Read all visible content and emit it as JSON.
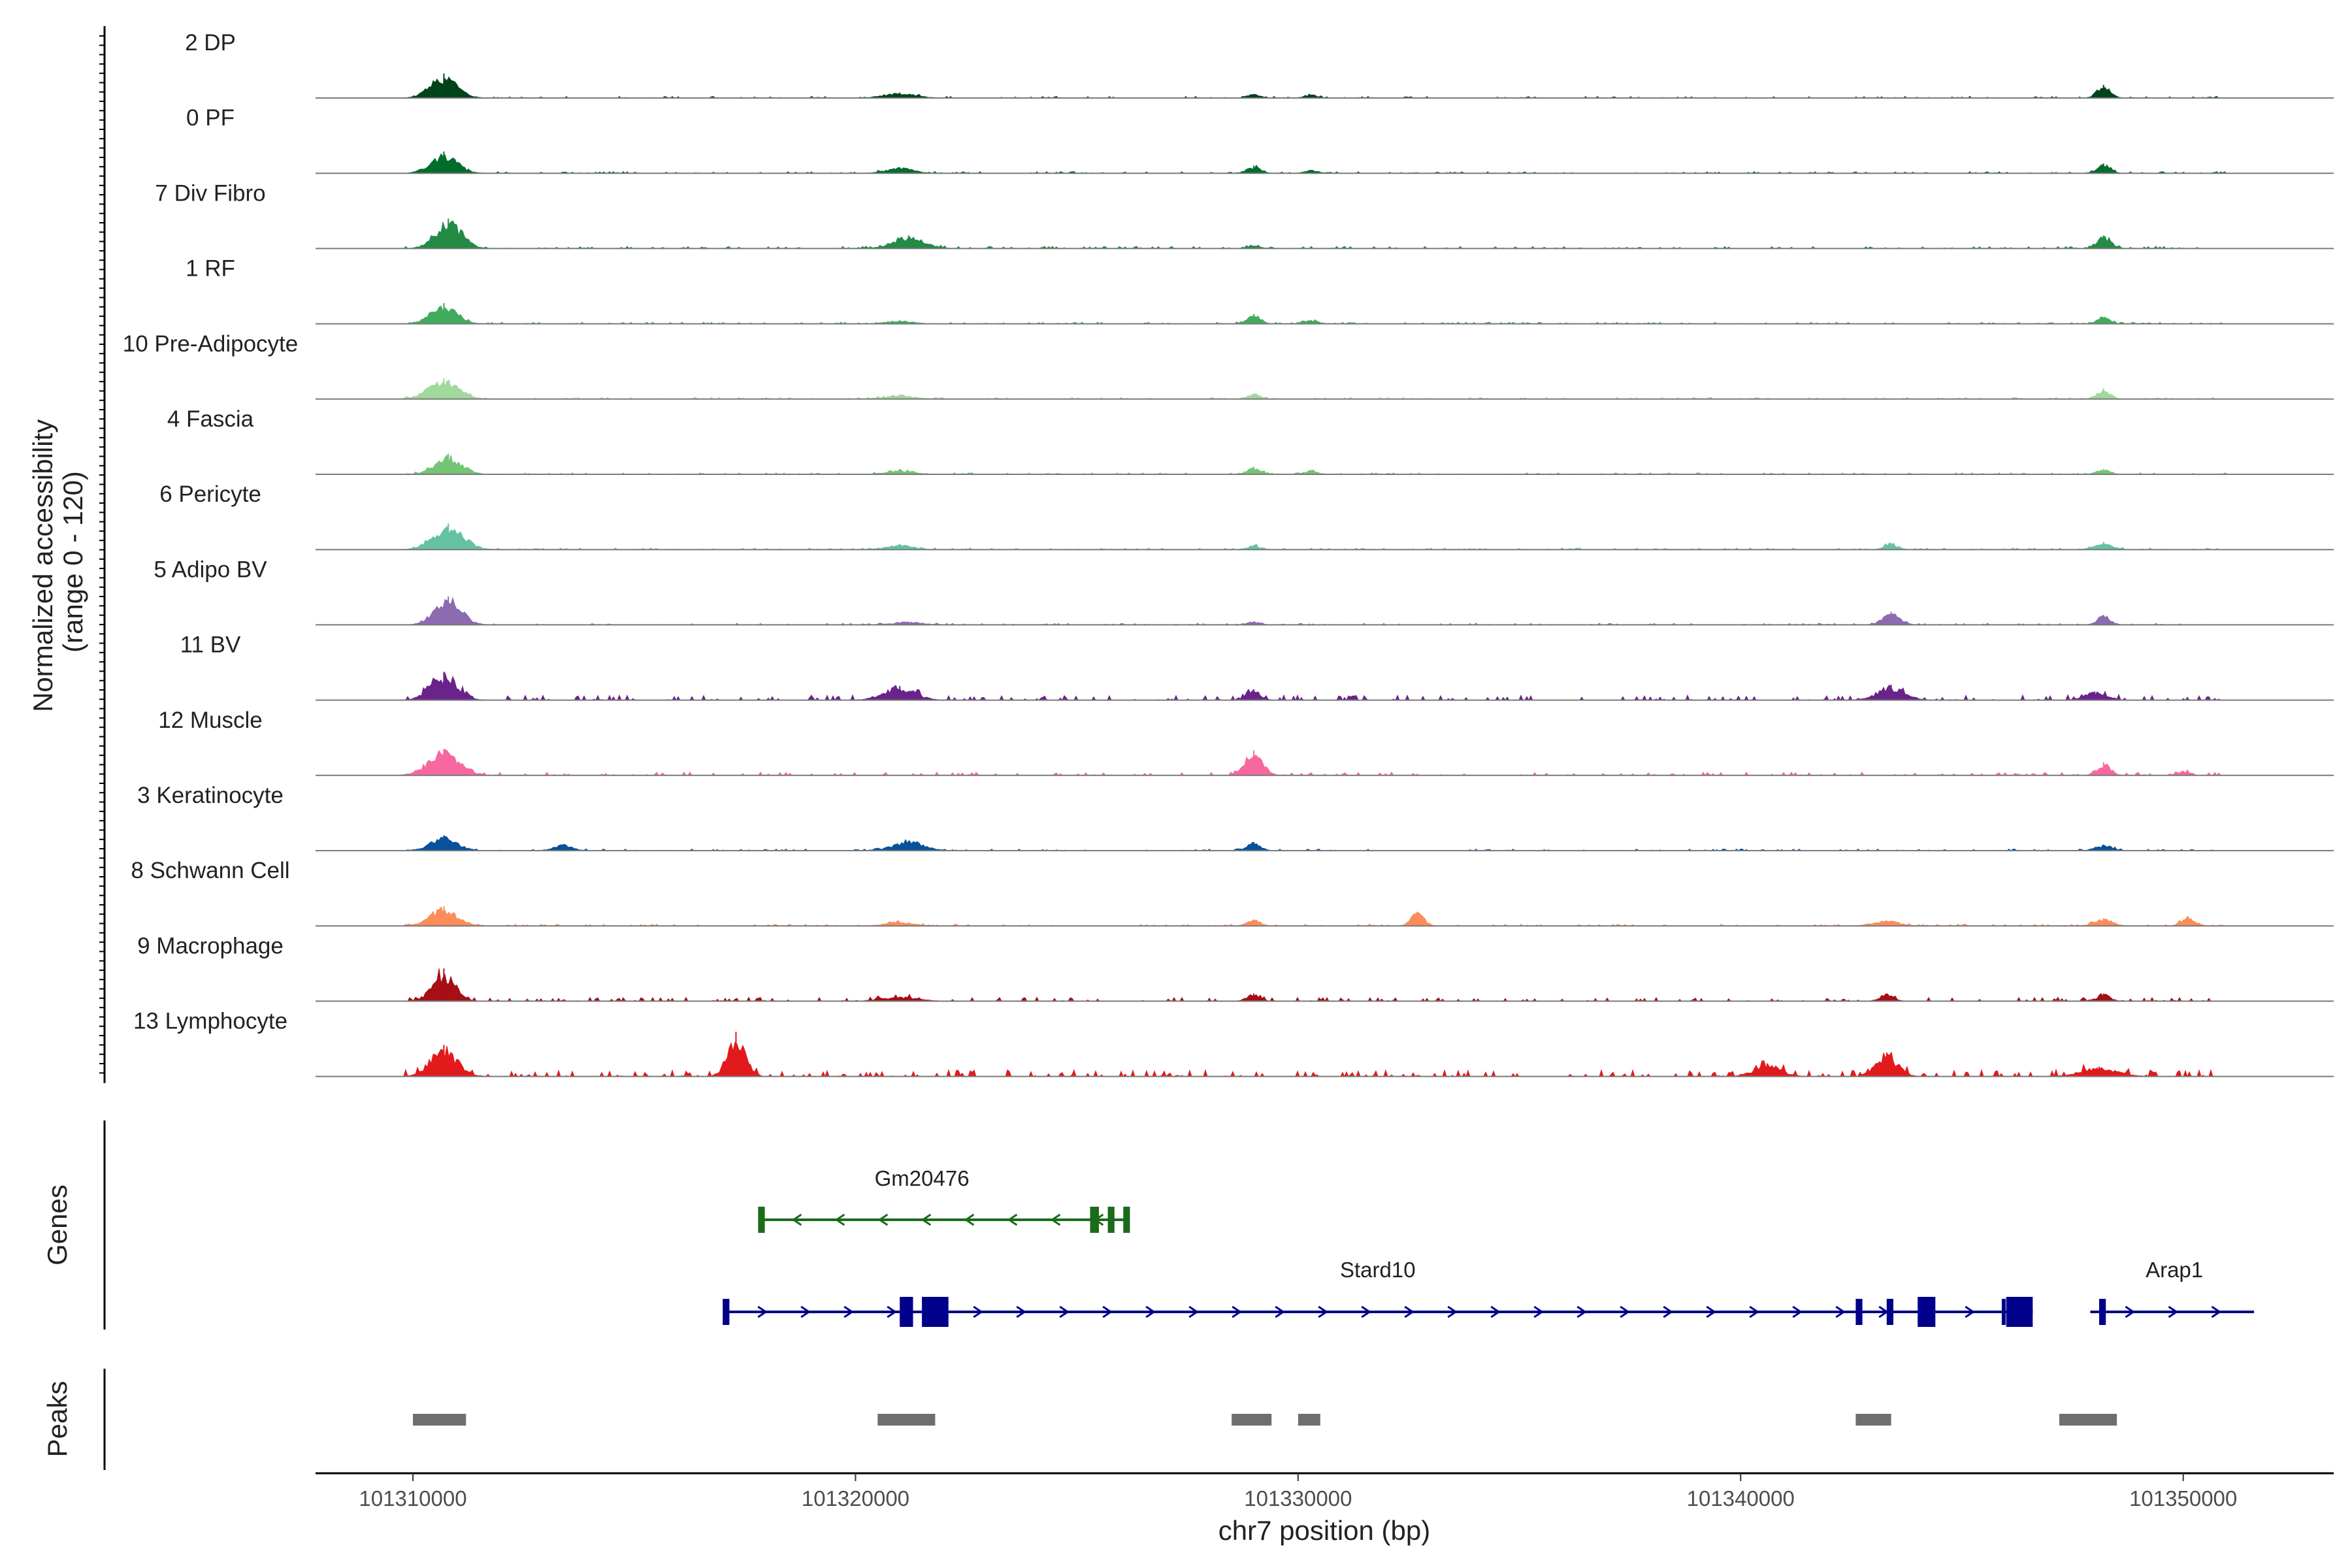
{
  "chart_data": {
    "type": "area",
    "title": "",
    "ylabel_line1": "Normalized accessibility",
    "ylabel_line2": "(range 0 - 120)",
    "ylim": [
      0,
      120
    ],
    "xlabel": "chr7 position (bp)",
    "xlim": [
      101307800,
      101353400
    ],
    "xticks": [
      101310000,
      101320000,
      101330000,
      101340000,
      101350000
    ],
    "xtick_labels": [
      "101310000",
      "101320000",
      "101330000",
      "101340000",
      "101350000"
    ],
    "tracks": [
      {
        "label": "2 DP",
        "color": "#00441b",
        "peaks": [
          [
            101310700,
            45,
            300
          ],
          [
            101321000,
            10,
            350
          ],
          [
            101329000,
            7,
            150
          ],
          [
            101330300,
            6,
            150
          ],
          [
            101348200,
            24,
            150
          ]
        ],
        "noise": 3
      },
      {
        "label": "0 PF",
        "color": "#006d2c",
        "peaks": [
          [
            101310700,
            40,
            300
          ],
          [
            101321000,
            11,
            300
          ],
          [
            101329000,
            14,
            150
          ],
          [
            101330300,
            6,
            150
          ],
          [
            101348200,
            18,
            150
          ]
        ],
        "noise": 3
      },
      {
        "label": "7 Div Fibro",
        "color": "#238b45",
        "peaks": [
          [
            101310800,
            55,
            300
          ],
          [
            101321200,
            24,
            350
          ],
          [
            101329000,
            5,
            150
          ],
          [
            101348200,
            24,
            150
          ]
        ],
        "noise": 4
      },
      {
        "label": "1 RF",
        "color": "#41ab5d",
        "peaks": [
          [
            101310700,
            38,
            300
          ],
          [
            101321000,
            6,
            300
          ],
          [
            101329000,
            18,
            150
          ],
          [
            101330300,
            7,
            150
          ],
          [
            101348200,
            12,
            150
          ]
        ],
        "noise": 3
      },
      {
        "label": "10 Pre-Adipocyte",
        "color": "#a1d99b",
        "peaks": [
          [
            101310700,
            38,
            350
          ],
          [
            101321000,
            8,
            300
          ],
          [
            101329000,
            10,
            150
          ],
          [
            101348200,
            20,
            150
          ]
        ],
        "noise": 3
      },
      {
        "label": "4 Fascia",
        "color": "#74c476",
        "peaks": [
          [
            101310800,
            38,
            300
          ],
          [
            101321000,
            8,
            300
          ],
          [
            101329000,
            14,
            150
          ],
          [
            101330300,
            8,
            150
          ],
          [
            101348200,
            10,
            150
          ]
        ],
        "noise": 3
      },
      {
        "label": "6 Pericyte",
        "color": "#66c2a4",
        "peaks": [
          [
            101310800,
            48,
            350
          ],
          [
            101321000,
            10,
            300
          ],
          [
            101329000,
            8,
            150
          ],
          [
            101343400,
            12,
            150
          ],
          [
            101348200,
            14,
            200
          ]
        ],
        "noise": 3
      },
      {
        "label": "5 Adipo BV",
        "color": "#8c6bb1",
        "peaks": [
          [
            101310800,
            52,
            300
          ],
          [
            101321200,
            6,
            300
          ],
          [
            101329000,
            6,
            150
          ],
          [
            101343400,
            24,
            200
          ],
          [
            101348200,
            18,
            150
          ]
        ],
        "noise": 3
      },
      {
        "label": "11 BV",
        "color": "#6a238a",
        "peaks": [
          [
            101310700,
            52,
            300
          ],
          [
            101321000,
            26,
            350
          ],
          [
            101329000,
            20,
            150
          ],
          [
            101343400,
            28,
            300
          ],
          [
            101348000,
            16,
            250
          ]
        ],
        "noise": 9
      },
      {
        "label": "12 Muscle",
        "color": "#f768a1",
        "peaks": [
          [
            101310700,
            48,
            350
          ],
          [
            101329000,
            46,
            200
          ],
          [
            101348200,
            24,
            150
          ],
          [
            101350000,
            8,
            150
          ]
        ],
        "noise": 6
      },
      {
        "label": "3 Keratinocyte",
        "color": "#08519c",
        "peaks": [
          [
            101310700,
            28,
            300
          ],
          [
            101313400,
            12,
            200
          ],
          [
            101321200,
            18,
            350
          ],
          [
            101329000,
            16,
            150
          ],
          [
            101348200,
            10,
            200
          ]
        ],
        "noise": 3
      },
      {
        "label": "8 Schwann Cell",
        "color": "#fc8d59",
        "peaks": [
          [
            101310700,
            36,
            300
          ],
          [
            101321000,
            8,
            300
          ],
          [
            101329000,
            12,
            150
          ],
          [
            101332700,
            26,
            150
          ],
          [
            101343300,
            10,
            300
          ],
          [
            101348200,
            14,
            200
          ],
          [
            101350100,
            18,
            150
          ]
        ],
        "noise": 3
      },
      {
        "label": "9 Macrophage",
        "color": "#a50f15",
        "peaks": [
          [
            101310700,
            60,
            250
          ],
          [
            101321000,
            8,
            400
          ],
          [
            101329000,
            14,
            150
          ],
          [
            101343300,
            14,
            150
          ],
          [
            101348200,
            14,
            150
          ]
        ],
        "noise": 7
      },
      {
        "label": "13 Lymphocyte",
        "color": "#e31a1c",
        "peaks": [
          [
            101310700,
            58,
            300
          ],
          [
            101317300,
            82,
            200
          ],
          [
            101343300,
            44,
            250
          ],
          [
            101340600,
            24,
            300
          ],
          [
            101348100,
            18,
            400
          ]
        ],
        "noise": 12
      }
    ],
    "genes_label": "Genes",
    "genes": [
      {
        "name": "Gm20476",
        "color": "#1a6b1a",
        "strand": "-",
        "start": 101317800,
        "end": 101326200,
        "exons": [
          [
            101317800,
            101317950
          ],
          [
            101325300,
            101325500
          ],
          [
            101325700,
            101325850
          ],
          [
            101326050,
            101326200
          ]
        ]
      },
      {
        "name": "Stard10",
        "color": "#00008b",
        "strand": "+",
        "start": 101317000,
        "end": 101346600,
        "exons": [
          [
            101317000,
            101317150
          ],
          [
            101321000,
            101321300
          ],
          [
            101321500,
            101322100
          ],
          [
            101342600,
            101342750
          ],
          [
            101343300,
            101343450
          ],
          [
            101344000,
            101344400
          ],
          [
            101345900,
            101345950
          ],
          [
            101346000,
            101346600
          ]
        ]
      },
      {
        "name": "Arap1",
        "color": "#00008b",
        "strand": "+",
        "start": 101347900,
        "end": 101351600,
        "exons": [
          [
            101348100,
            101348250
          ]
        ]
      }
    ],
    "peaks_label": "Peaks",
    "peak_regions": [
      [
        101310000,
        101311200
      ],
      [
        101320500,
        101321800
      ],
      [
        101328500,
        101329400
      ],
      [
        101330000,
        101330500
      ],
      [
        101342600,
        101343400
      ],
      [
        101347200,
        101348500
      ]
    ]
  }
}
